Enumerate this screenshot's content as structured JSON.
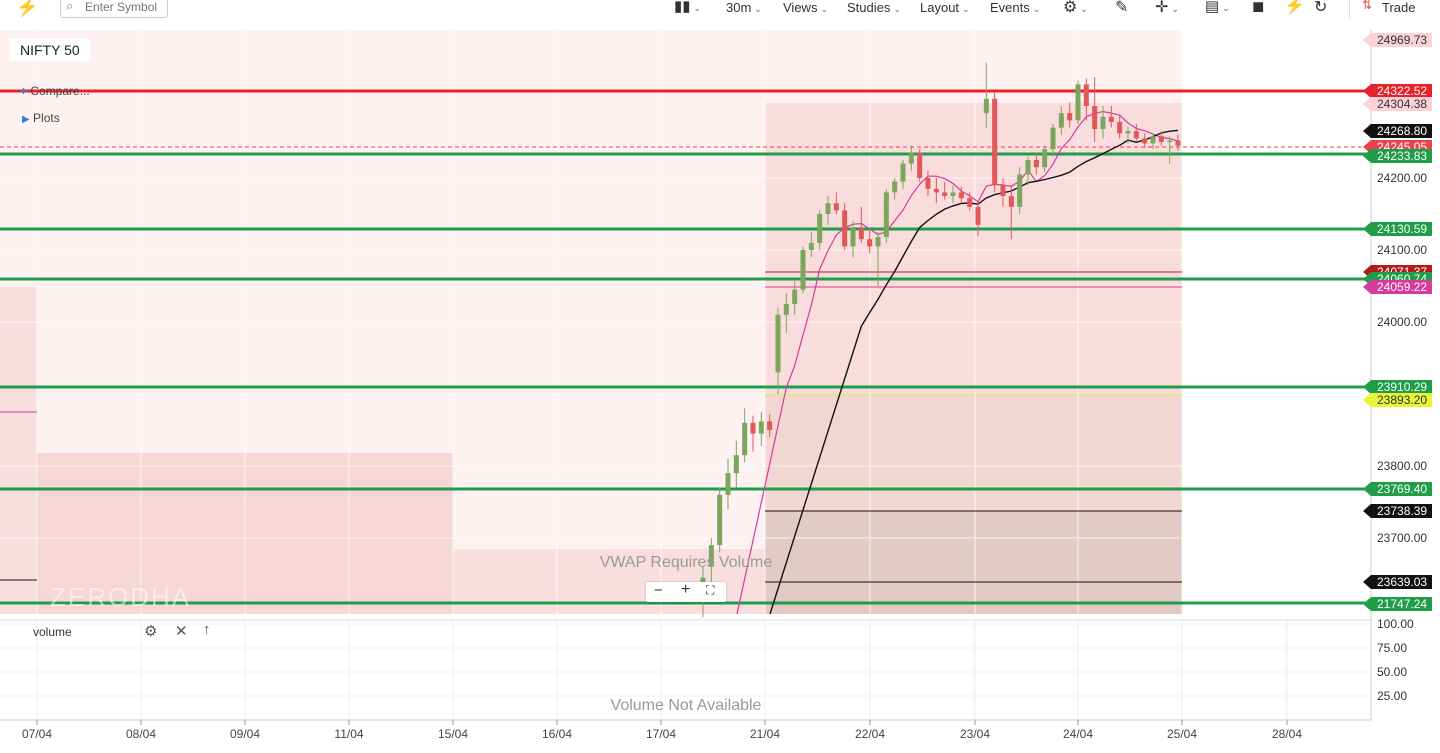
{
  "toolbar": {
    "search_placeholder": "Enter Symbol",
    "interval": "30m",
    "views": "Views",
    "studies": "Studies",
    "layout": "Layout",
    "events": "Events",
    "trade": "Trade"
  },
  "chart_panel": {
    "symbol": "NIFTY 50",
    "compare": "Compare...",
    "plots": "Plots",
    "vwap_msg": "VWAP Requires Volume",
    "watermark": "ZERODHA",
    "zoom_minus": "−",
    "zoom_plus": "+"
  },
  "volume_panel": {
    "title": "volume",
    "msg": "Volume Not Available"
  },
  "colors": {
    "up": "#7ba65c",
    "down": "#e05858",
    "red_line": "#e8212b",
    "green_line": "#1f9d48",
    "pink_ma": "#d63a9a",
    "black_ma": "#111111",
    "zone_light": "#fdecec",
    "zone_dark": "#f5d3d3"
  },
  "chart_data": {
    "type": "candlestick",
    "title": "NIFTY 50",
    "x_tick_labels": [
      "07/04",
      "08/04",
      "09/04",
      "11/04",
      "15/04",
      "16/04",
      "17/04",
      "21/04",
      "22/04",
      "23/04",
      "24/04",
      "25/04",
      "28/04"
    ],
    "y_tick_labels": [
      "24200.00",
      "24100.00",
      "24000.00",
      "23800.00",
      "23700.00"
    ],
    "volume_tick_labels": [
      "100.00",
      "75.00",
      "50.00",
      "25.00"
    ],
    "price_tags": [
      {
        "label": "24969.73",
        "bg": "#fbd3d7",
        "fg": "#333333"
      },
      {
        "label": "24322.52",
        "bg": "#e8212b",
        "fg": "#ffffff"
      },
      {
        "label": "24304.38",
        "bg": "#fbd3d7",
        "fg": "#333333"
      },
      {
        "label": "24268.80",
        "bg": "#111111",
        "fg": "#ffffff"
      },
      {
        "label": "24245.05",
        "bg": "#e8434d",
        "fg": "#ffffff"
      },
      {
        "label": "24233.83",
        "bg": "#1f9d48",
        "fg": "#ffffff"
      },
      {
        "label": "24130.59",
        "bg": "#1f9d48",
        "fg": "#ffffff"
      },
      {
        "label": "24071.37",
        "bg": "#b31b1b",
        "fg": "#ffffff"
      },
      {
        "label": "24060.74",
        "bg": "#1f9d48",
        "fg": "#ffffff"
      },
      {
        "label": "24059.22",
        "bg": "#d63a9a",
        "fg": "#ffffff"
      },
      {
        "label": "23910.29",
        "bg": "#1f9d48",
        "fg": "#ffffff"
      },
      {
        "label": "23893.20",
        "bg": "#e8f536",
        "fg": "#333333"
      },
      {
        "label": "23769.40",
        "bg": "#1f9d48",
        "fg": "#ffffff"
      },
      {
        "label": "23738.39",
        "bg": "#111111",
        "fg": "#ffffff"
      },
      {
        "label": "23639.03",
        "bg": "#111111",
        "fg": "#ffffff"
      },
      {
        "label": "21747.24",
        "bg": "#1f9d48",
        "fg": "#ffffff"
      }
    ],
    "levels": [
      {
        "name": "red-resistance",
        "price": 24322.52,
        "color": "#e8212b"
      },
      {
        "name": "green-level-1",
        "price": 24233.83,
        "color": "#1f9d48"
      },
      {
        "name": "green-level-2",
        "price": 24130.59,
        "color": "#1f9d48"
      },
      {
        "name": "green-level-3",
        "price": 24060.74,
        "color": "#1f9d48"
      },
      {
        "name": "green-level-4",
        "price": 23910.29,
        "color": "#1f9d48"
      },
      {
        "name": "green-level-5",
        "price": 23769.4,
        "color": "#1f9d48"
      },
      {
        "name": "green-level-6",
        "price": 21747.24,
        "color": "#1f9d48"
      }
    ],
    "candles": [
      {
        "o": 23626,
        "h": 23660,
        "l": 23590,
        "c": 23645
      },
      {
        "o": 23660,
        "h": 23700,
        "l": 23635,
        "c": 23690
      },
      {
        "o": 23690,
        "h": 23770,
        "l": 23680,
        "c": 23760
      },
      {
        "o": 23760,
        "h": 23810,
        "l": 23740,
        "c": 23790
      },
      {
        "o": 23790,
        "h": 23835,
        "l": 23770,
        "c": 23815
      },
      {
        "o": 23815,
        "h": 23880,
        "l": 23805,
        "c": 23860
      },
      {
        "o": 23860,
        "h": 23870,
        "l": 23820,
        "c": 23845
      },
      {
        "o": 23845,
        "h": 23875,
        "l": 23828,
        "c": 23862
      },
      {
        "o": 23862,
        "h": 23872,
        "l": 23840,
        "c": 23850
      },
      {
        "o": 23930,
        "h": 24020,
        "l": 23900,
        "c": 24010
      },
      {
        "o": 24010,
        "h": 24040,
        "l": 23985,
        "c": 24025
      },
      {
        "o": 24025,
        "h": 24060,
        "l": 24010,
        "c": 24045
      },
      {
        "o": 24045,
        "h": 24105,
        "l": 24040,
        "c": 24100
      },
      {
        "o": 24100,
        "h": 24125,
        "l": 24090,
        "c": 24110
      },
      {
        "o": 24110,
        "h": 24155,
        "l": 24100,
        "c": 24150
      },
      {
        "o": 24150,
        "h": 24175,
        "l": 24135,
        "c": 24165
      },
      {
        "o": 24165,
        "h": 24180,
        "l": 24150,
        "c": 24155
      },
      {
        "o": 24155,
        "h": 24165,
        "l": 24100,
        "c": 24105
      },
      {
        "o": 24105,
        "h": 24140,
        "l": 24090,
        "c": 24130
      },
      {
        "o": 24130,
        "h": 24160,
        "l": 24110,
        "c": 24115
      },
      {
        "o": 24115,
        "h": 24130,
        "l": 24095,
        "c": 24105
      },
      {
        "o": 24105,
        "h": 24125,
        "l": 24050,
        "c": 24118
      },
      {
        "o": 24118,
        "h": 24185,
        "l": 24110,
        "c": 24180
      },
      {
        "o": 24180,
        "h": 24200,
        "l": 24170,
        "c": 24195
      },
      {
        "o": 24195,
        "h": 24225,
        "l": 24185,
        "c": 24220
      },
      {
        "o": 24220,
        "h": 24245,
        "l": 24210,
        "c": 24235
      },
      {
        "o": 24235,
        "h": 24240,
        "l": 24195,
        "c": 24200
      },
      {
        "o": 24200,
        "h": 24210,
        "l": 24175,
        "c": 24185
      },
      {
        "o": 24185,
        "h": 24200,
        "l": 24165,
        "c": 24180
      },
      {
        "o": 24180,
        "h": 24195,
        "l": 24170,
        "c": 24175
      },
      {
        "o": 24175,
        "h": 24190,
        "l": 24165,
        "c": 24180
      },
      {
        "o": 24180,
        "h": 24188,
        "l": 24165,
        "c": 24172
      },
      {
        "o": 24172,
        "h": 24180,
        "l": 24155,
        "c": 24160
      },
      {
        "o": 24160,
        "h": 24168,
        "l": 24120,
        "c": 24135
      },
      {
        "o": 24290,
        "h": 24360,
        "l": 24270,
        "c": 24310
      },
      {
        "o": 24310,
        "h": 24320,
        "l": 24180,
        "c": 24190
      },
      {
        "o": 24190,
        "h": 24200,
        "l": 24160,
        "c": 24175
      },
      {
        "o": 24175,
        "h": 24190,
        "l": 24115,
        "c": 24160
      },
      {
        "o": 24160,
        "h": 24215,
        "l": 24150,
        "c": 24205
      },
      {
        "o": 24205,
        "h": 24230,
        "l": 24190,
        "c": 24225
      },
      {
        "o": 24225,
        "h": 24235,
        "l": 24205,
        "c": 24215
      },
      {
        "o": 24215,
        "h": 24245,
        "l": 24208,
        "c": 24240
      },
      {
        "o": 24240,
        "h": 24275,
        "l": 24230,
        "c": 24270
      },
      {
        "o": 24270,
        "h": 24300,
        "l": 24260,
        "c": 24290
      },
      {
        "o": 24290,
        "h": 24305,
        "l": 24270,
        "c": 24280
      },
      {
        "o": 24280,
        "h": 24335,
        "l": 24275,
        "c": 24330
      },
      {
        "o": 24330,
        "h": 24338,
        "l": 24280,
        "c": 24300
      },
      {
        "o": 24300,
        "h": 24340,
        "l": 24250,
        "c": 24268
      },
      {
        "o": 24268,
        "h": 24300,
        "l": 24255,
        "c": 24285
      },
      {
        "o": 24285,
        "h": 24300,
        "l": 24270,
        "c": 24278
      },
      {
        "o": 24278,
        "h": 24288,
        "l": 24255,
        "c": 24262
      },
      {
        "o": 24262,
        "h": 24272,
        "l": 24248,
        "c": 24265
      },
      {
        "o": 24265,
        "h": 24275,
        "l": 24250,
        "c": 24255
      },
      {
        "o": 24255,
        "h": 24262,
        "l": 24242,
        "c": 24248
      },
      {
        "o": 24248,
        "h": 24262,
        "l": 24240,
        "c": 24258
      },
      {
        "o": 24258,
        "h": 24265,
        "l": 24245,
        "c": 24250
      },
      {
        "o": 24250,
        "h": 24258,
        "l": 24220,
        "c": 24252
      },
      {
        "o": 24252,
        "h": 24260,
        "l": 24238,
        "c": 24245
      }
    ]
  }
}
